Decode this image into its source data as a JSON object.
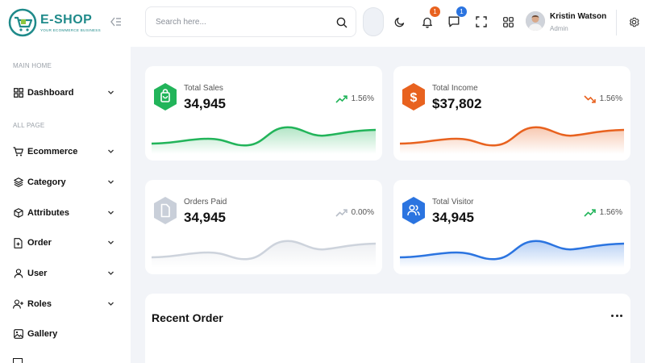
{
  "brand": {
    "name": "E-SHOP",
    "tagline": "YOUR ECOMMERCE BUSINESS",
    "color": "#1f8a8a"
  },
  "sidebar": {
    "section_main": "MAIN HOME",
    "section_all": "ALL PAGE",
    "items": [
      {
        "label": "Dashboard",
        "icon": "grid-icon"
      },
      {
        "label": "Ecommerce",
        "icon": "cart-icon"
      },
      {
        "label": "Category",
        "icon": "layers-icon"
      },
      {
        "label": "Attributes",
        "icon": "box-icon"
      },
      {
        "label": "Order",
        "icon": "file-plus-icon"
      },
      {
        "label": "User",
        "icon": "user-icon"
      },
      {
        "label": "Roles",
        "icon": "user-plus-icon"
      },
      {
        "label": "Gallery",
        "icon": "image-icon"
      }
    ]
  },
  "header": {
    "search_placeholder": "Search here...",
    "notifications_count": "1",
    "messages_count": "1",
    "user_name": "Kristin Watson",
    "user_role": "Admin"
  },
  "stats": [
    {
      "label": "Total Sales",
      "value": "34,945",
      "change": "1.56%",
      "trend": "up",
      "color": "#22b45a",
      "icon": "shopping-bag-icon"
    },
    {
      "label": "Total Income",
      "value": "$37,802",
      "change": "1.56%",
      "trend": "down",
      "color": "#e8621f",
      "icon": "dollar-icon"
    },
    {
      "label": "Orders Paid",
      "value": "34,945",
      "change": "0.00%",
      "trend": "flat",
      "color": "#c9cfd9",
      "icon": "file-icon"
    },
    {
      "label": "Total Visitor",
      "value": "34,945",
      "change": "1.56%",
      "trend": "up",
      "color": "#2b74e0",
      "icon": "users-icon"
    }
  ],
  "recent_order": {
    "title": "Recent Order"
  }
}
